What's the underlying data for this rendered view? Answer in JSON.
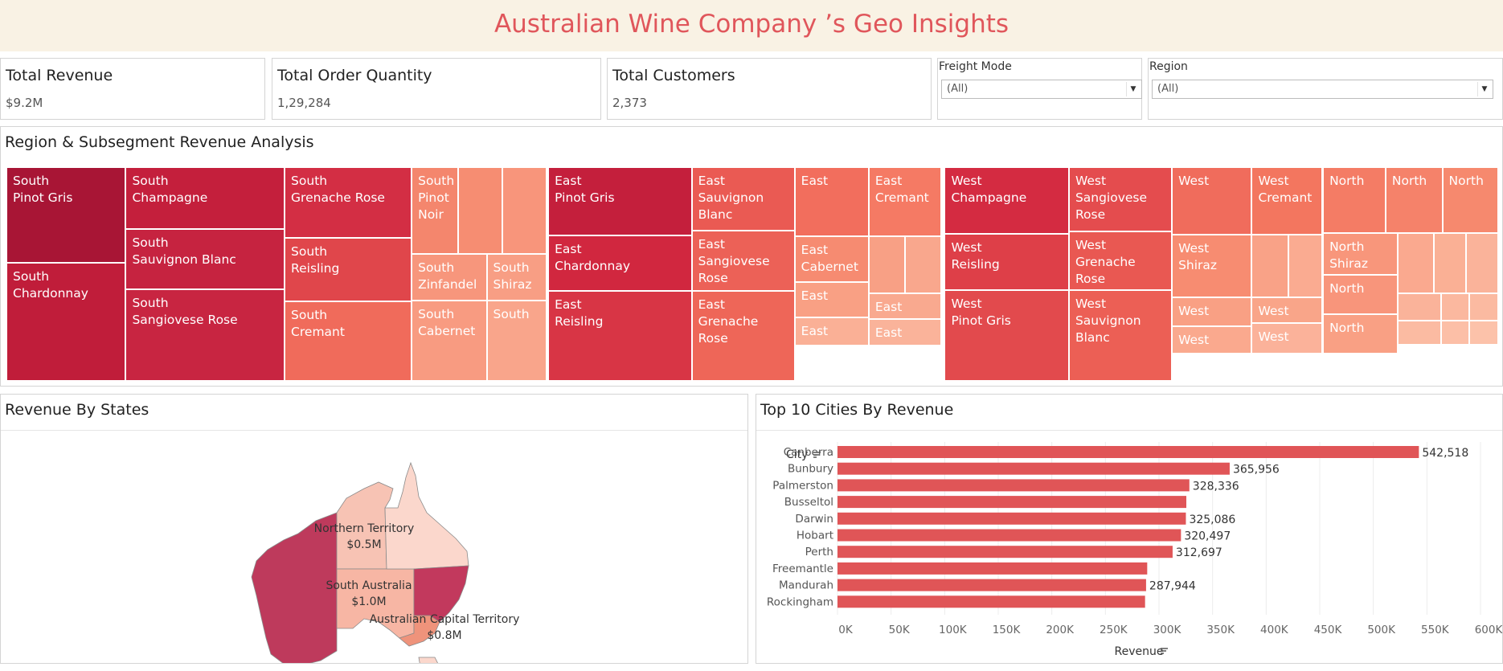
{
  "header": {
    "title": "Australian Wine Company ’s Geo Insights"
  },
  "kpis": [
    {
      "title": "Total Revenue",
      "value": "$9.2M"
    },
    {
      "title": "Total Order Quantity",
      "value": "1,29,284"
    },
    {
      "title": "Total Customers",
      "value": "2,373"
    }
  ],
  "filters": {
    "freight": {
      "label": "Freight Mode",
      "value": "(All)"
    },
    "region": {
      "label": "Region",
      "value": "(All)"
    }
  },
  "treemap": {
    "title": "Region & Subsegment Revenue Analysis",
    "tiles": [
      {
        "label": "South\nPinot Gris",
        "color": "#a81535"
      },
      {
        "label": "South\nChardonnay",
        "color": "#c01d3a"
      },
      {
        "label": "South\nChampagne",
        "color": "#c41f3c"
      },
      {
        "label": "South\nSauvignon Blanc",
        "color": "#c62340"
      },
      {
        "label": "South\nSangiovese Rose",
        "color": "#c82541"
      },
      {
        "label": "South\nGrenache Rose",
        "color": "#d32e44"
      },
      {
        "label": "South\nReisling",
        "color": "#e0464b"
      },
      {
        "label": "South\nCremant",
        "color": "#f06b5b"
      },
      {
        "label": "South\nPinot\nNoir",
        "color": "#f4866d"
      },
      {
        "label": "",
        "color": "#f68d72"
      },
      {
        "label": "",
        "color": "#f8957b"
      },
      {
        "label": "South\nZinfandel",
        "color": "#f7967c"
      },
      {
        "label": "South\nShiraz",
        "color": "#f89e84"
      },
      {
        "label": "South\nCabernet",
        "color": "#f89b81"
      },
      {
        "label": "South",
        "color": "#f9a58b"
      },
      {
        "label": "East\nPinot Gris",
        "color": "#c41f3c"
      },
      {
        "label": "East\nChardonnay",
        "color": "#d1273f"
      },
      {
        "label": "East\nReisling",
        "color": "#d83545"
      },
      {
        "label": "East\nSauvignon\nBlanc",
        "color": "#ea5a53"
      },
      {
        "label": "East\nSangiovese\nRose",
        "color": "#ec6157"
      },
      {
        "label": "East\nGrenache Rose",
        "color": "#ee6658"
      },
      {
        "label": "East",
        "color": "#f26e5d"
      },
      {
        "label": "East\nCremant",
        "color": "#f57a64"
      },
      {
        "label": "East\nCabernet",
        "color": "#f68b71"
      },
      {
        "label": "",
        "color": "#f8a085"
      },
      {
        "label": "",
        "color": "#f9a78d"
      },
      {
        "label": "East",
        "color": "#f9a084"
      },
      {
        "label": "East",
        "color": "#f9a98f"
      },
      {
        "label": "East",
        "color": "#fab096"
      },
      {
        "label": "East",
        "color": "#fab39a"
      },
      {
        "label": "West\nChampagne",
        "color": "#d42b41"
      },
      {
        "label": "West\nReisling",
        "color": "#de3f48"
      },
      {
        "label": "West\nPinot Gris",
        "color": "#e24a4d"
      },
      {
        "label": "West\nSangiovese\nRose",
        "color": "#e44c4e"
      },
      {
        "label": "West\nGrenache Rose",
        "color": "#e95852"
      },
      {
        "label": "West\nSauvignon\nBlanc",
        "color": "#ec5f55"
      },
      {
        "label": "West",
        "color": "#f06c5c"
      },
      {
        "label": "West\nCremant",
        "color": "#f3765f"
      },
      {
        "label": "West\nShiraz",
        "color": "#f78c71"
      },
      {
        "label": "",
        "color": "#f9a287"
      },
      {
        "label": "",
        "color": "#faab91"
      },
      {
        "label": "West",
        "color": "#f9a084"
      },
      {
        "label": "West",
        "color": "#f9a589"
      },
      {
        "label": "West",
        "color": "#faa98e"
      },
      {
        "label": "West",
        "color": "#fbb29a"
      },
      {
        "label": "North",
        "color": "#f47c65"
      },
      {
        "label": "North",
        "color": "#f5826a"
      },
      {
        "label": "North",
        "color": "#f6896e"
      },
      {
        "label": "North\nShiraz",
        "color": "#f8967b"
      },
      {
        "label": "North",
        "color": "#f8957b"
      },
      {
        "label": "North",
        "color": "#f9a084"
      },
      {
        "label": "",
        "color": "#faa98f"
      },
      {
        "label": "",
        "color": "#fab095"
      },
      {
        "label": "",
        "color": "#fab39a"
      },
      {
        "label": "",
        "color": "#fab39a"
      },
      {
        "label": "",
        "color": "#fbb89f"
      },
      {
        "label": "",
        "color": "#fbbaa1"
      },
      {
        "label": "",
        "color": "#fbbba2"
      },
      {
        "label": "",
        "color": "#fcbfa7"
      },
      {
        "label": "",
        "color": "#fcc2aa"
      },
      {
        "label": "",
        "color": "#fcc5ad"
      }
    ]
  },
  "map": {
    "title": "Revenue By States",
    "labels": [
      {
        "name": "Northern Territory",
        "value": "$0.5M"
      },
      {
        "name": "South Australia",
        "value": "$1.0M"
      },
      {
        "name": "Australian Capital Territory",
        "value": "$0.8M"
      }
    ],
    "colors": {
      "wa": "#be3a5c",
      "nt": "#f7c3b4",
      "sa": "#f7b6a4",
      "qld": "#fbd7cc",
      "nsw": "#c2395d",
      "vic": "#ef937b",
      "tas": "#fbd7cc"
    }
  },
  "cities": {
    "title": "Top 10 Cities By Revenue",
    "row_header": "City",
    "axis_title": "Revenue",
    "tick_labels": [
      "0K",
      "50K",
      "100K",
      "150K",
      "200K",
      "250K",
      "300K",
      "350K",
      "400K",
      "450K",
      "500K",
      "550K",
      "600K"
    ],
    "bar_color": "#e05557"
  },
  "chart_data": {
    "type": "bar",
    "orientation": "horizontal",
    "title": "Top 10 Cities By Revenue",
    "xlabel": "Revenue",
    "ylabel": "City",
    "xlim": [
      0,
      600000
    ],
    "categories": [
      "Canberra",
      "Bunbury",
      "Palmerston",
      "Busseltol",
      "Darwin",
      "Hobart",
      "Perth",
      "Freemantle",
      "Mandurah",
      "Rockingham"
    ],
    "values": [
      542518,
      365956,
      328336,
      325500,
      325086,
      320497,
      312697,
      289000,
      287944,
      287000
    ],
    "data_labels": [
      "542,518",
      "365,956",
      "328,336",
      "",
      "325,086",
      "320,497",
      "312,697",
      "",
      "287,944",
      ""
    ]
  }
}
